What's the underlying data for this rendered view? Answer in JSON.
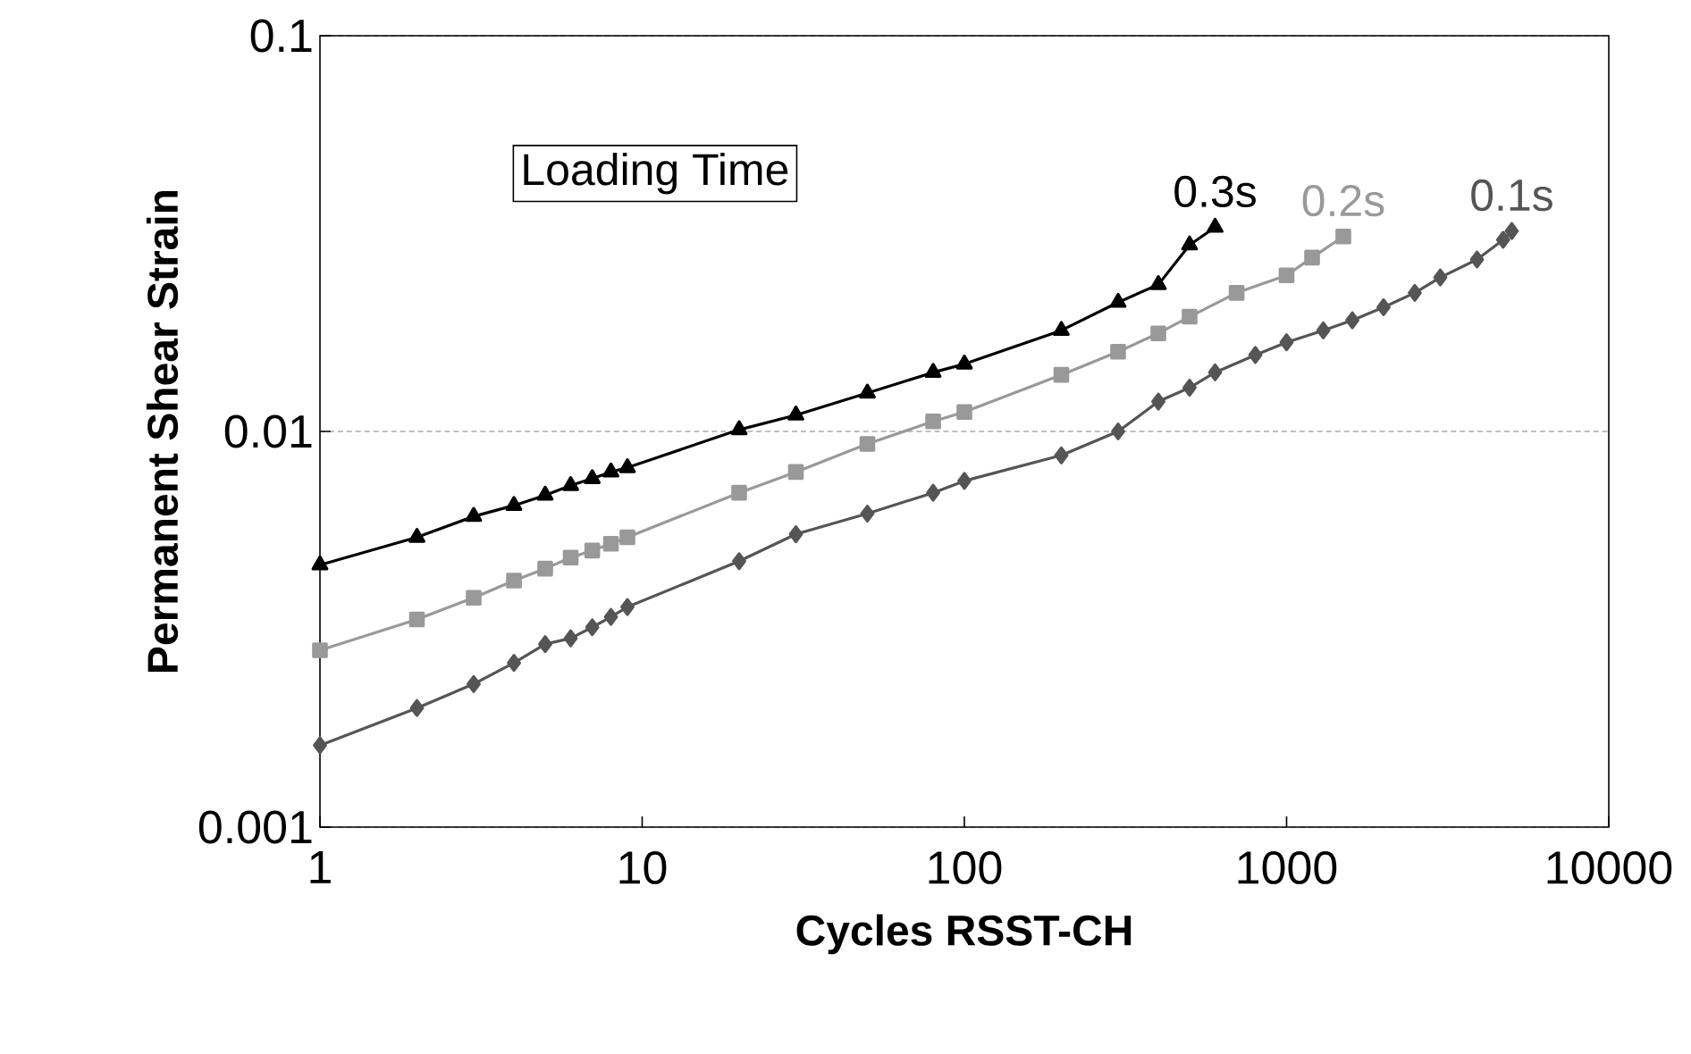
{
  "chart_data": {
    "type": "line",
    "xlabel": "Cycles RSST-CH",
    "ylabel": "Permanent Shear Strain",
    "annotations": [
      "Loading Time"
    ],
    "log": "xy",
    "grid": "y",
    "legend": false,
    "xlim": [
      1,
      10000
    ],
    "ylim": [
      0.001,
      0.1
    ],
    "xticks": [
      1,
      10,
      100,
      1000,
      10000
    ],
    "yticks": [
      0.001,
      0.01,
      0.1
    ],
    "series": [
      {
        "name": "0.3s",
        "color": "#000000",
        "marker": "triangle",
        "x": [
          1,
          2,
          3,
          4,
          5,
          6,
          7,
          8,
          9,
          20,
          30,
          50,
          80,
          100,
          200,
          300,
          400,
          500,
          600
        ],
        "values": [
          0.0046,
          0.0054,
          0.0061,
          0.0065,
          0.0069,
          0.0073,
          0.0076,
          0.0079,
          0.0081,
          0.0101,
          0.011,
          0.0125,
          0.0141,
          0.0148,
          0.018,
          0.0212,
          0.0235,
          0.0296,
          0.0328
        ]
      },
      {
        "name": "0.2s",
        "color": "#999999",
        "marker": "square",
        "x": [
          1,
          2,
          3,
          4,
          5,
          6,
          7,
          8,
          9,
          20,
          30,
          50,
          80,
          100,
          200,
          300,
          400,
          500,
          700,
          1000,
          1200,
          1500
        ],
        "values": [
          0.0028,
          0.00335,
          0.0038,
          0.0042,
          0.0045,
          0.0048,
          0.005,
          0.0052,
          0.0054,
          0.007,
          0.0079,
          0.0093,
          0.0106,
          0.0112,
          0.0139,
          0.0159,
          0.0177,
          0.0195,
          0.0224,
          0.0248,
          0.0275,
          0.0311
        ]
      },
      {
        "name": "0.1s",
        "color": "#555555",
        "marker": "diamond",
        "x": [
          1,
          2,
          3,
          4,
          5,
          6,
          7,
          8,
          9,
          20,
          30,
          50,
          80,
          100,
          200,
          300,
          400,
          500,
          600,
          800,
          1000,
          1300,
          1600,
          2000,
          2500,
          3000,
          3900,
          4700,
          5000
        ],
        "values": [
          0.00161,
          0.002,
          0.0023,
          0.0026,
          0.0029,
          0.003,
          0.0032,
          0.0034,
          0.0036,
          0.0047,
          0.0055,
          0.0062,
          0.007,
          0.0075,
          0.0087,
          0.01,
          0.0119,
          0.0129,
          0.0141,
          0.0156,
          0.0168,
          0.018,
          0.0191,
          0.0206,
          0.0224,
          0.0245,
          0.0272,
          0.0305,
          0.0321
        ]
      }
    ]
  }
}
